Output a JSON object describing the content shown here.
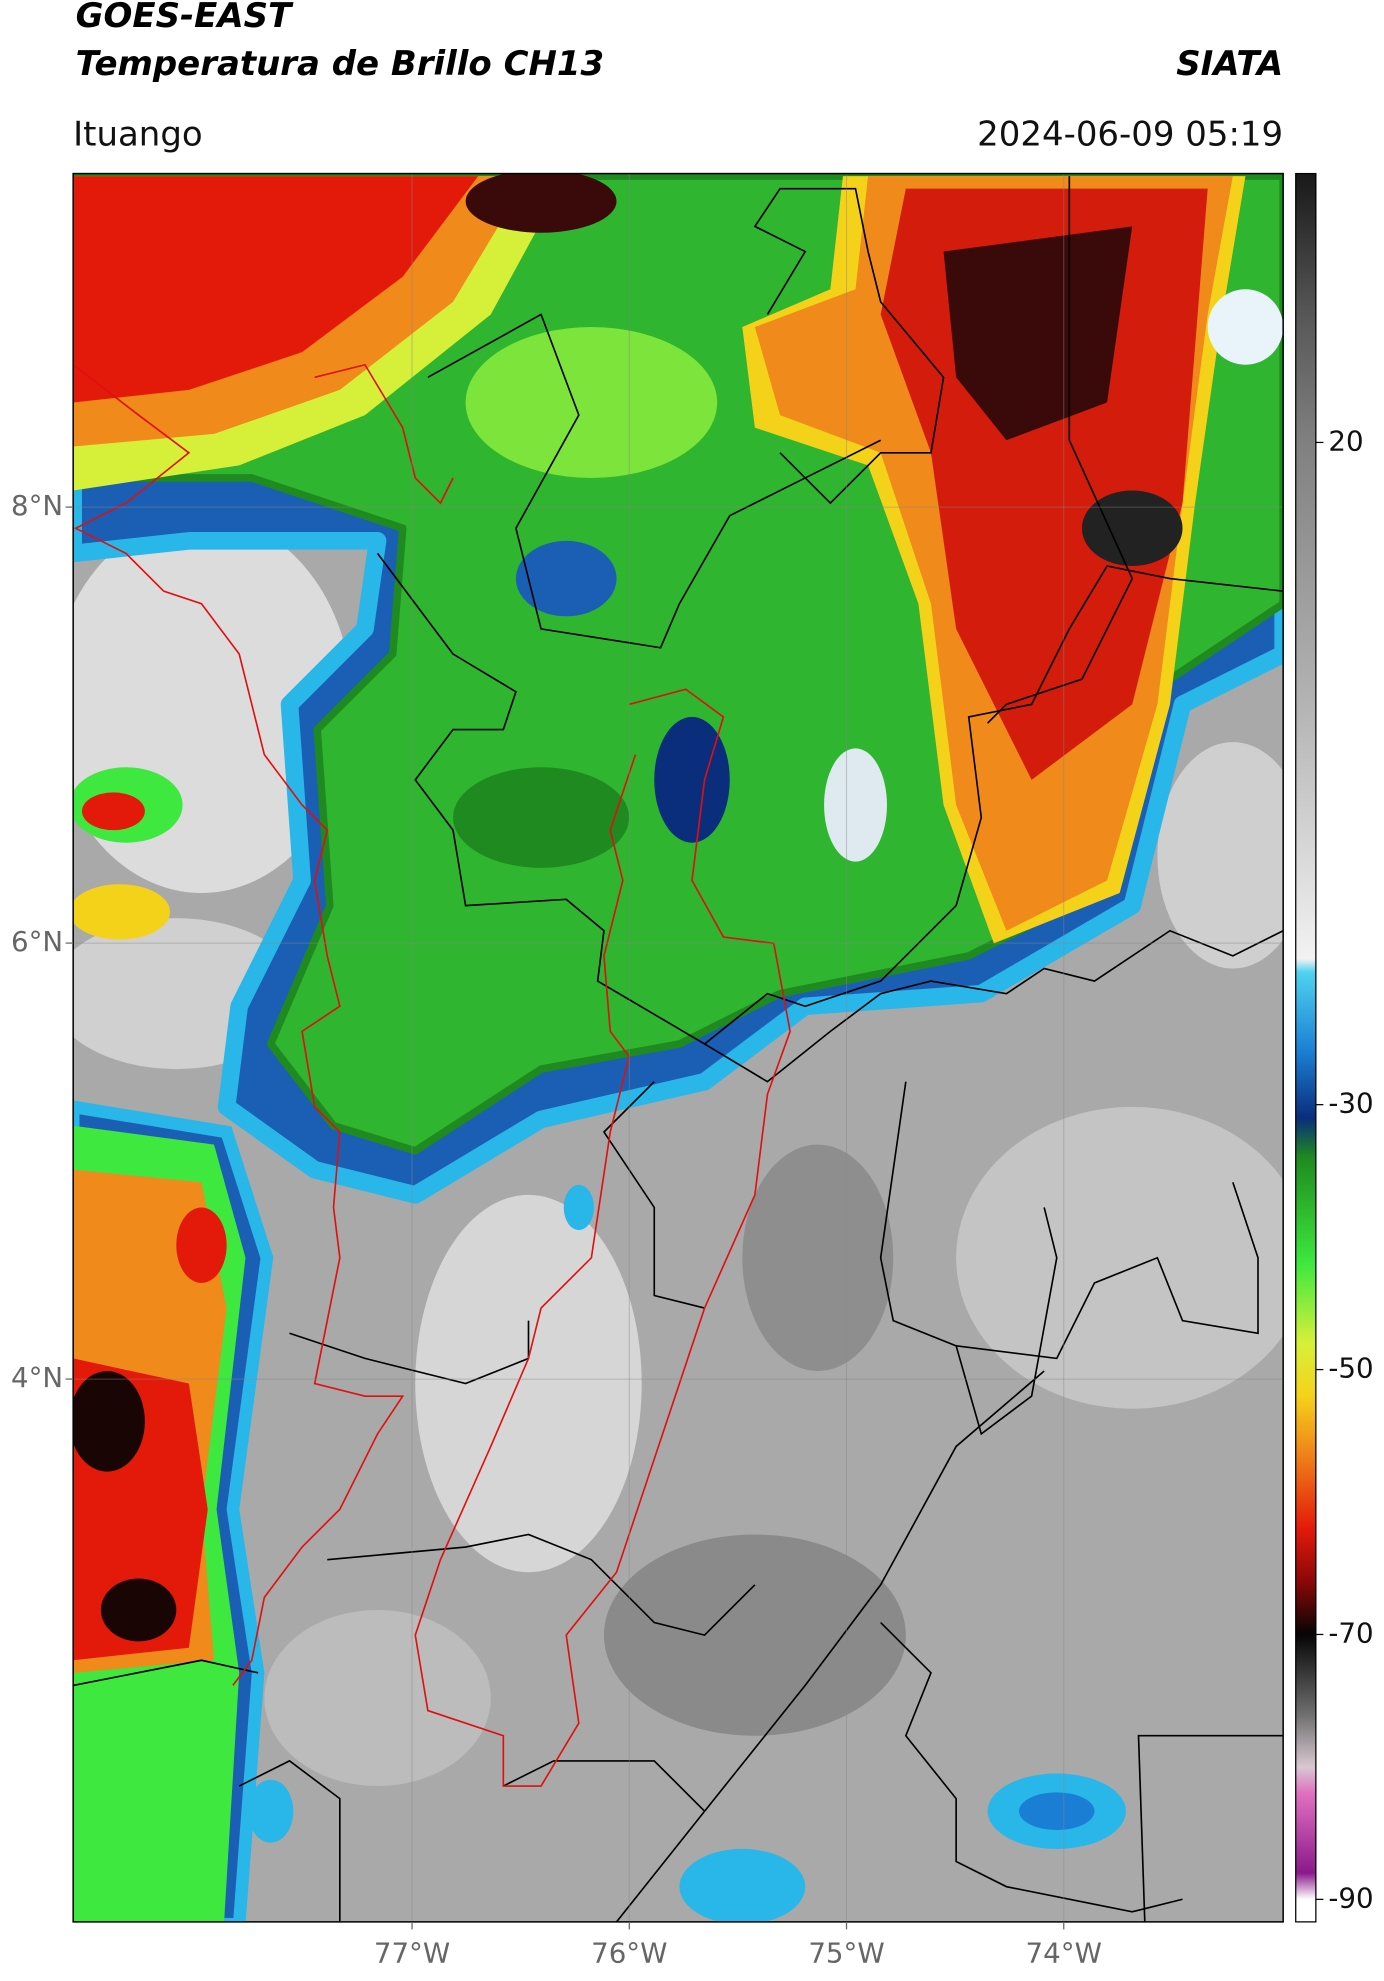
{
  "header": {
    "title": "GOES-EAST",
    "subtitle": "Temperatura de Brillo CH13",
    "source": "SIATA",
    "location": "Ituango",
    "datetime": "2024-06-09 05:19"
  },
  "map": {
    "xlim": [
      -78.56,
      -72.99
    ],
    "ylim": [
      1.51,
      9.53
    ],
    "xticks": [
      {
        "value": -77,
        "label": "77°W"
      },
      {
        "value": -76,
        "label": "76°W"
      },
      {
        "value": -75,
        "label": "75°W"
      },
      {
        "value": -74,
        "label": "74°W"
      }
    ],
    "yticks": [
      {
        "value": 8,
        "label": "8°N"
      },
      {
        "value": 6,
        "label": "6°N"
      },
      {
        "value": 4,
        "label": "4°N"
      }
    ],
    "grid": true
  },
  "colorbar": {
    "clim": [
      -91.7,
      40.3
    ],
    "ticks": [
      20,
      -30,
      -50,
      -70,
      -90
    ],
    "stops": [
      [
        40,
        "#1a1a1a"
      ],
      [
        30,
        "#555555"
      ],
      [
        20,
        "#808080"
      ],
      [
        0,
        "#b4b4b4"
      ],
      [
        -19,
        "#f2f2f2"
      ],
      [
        -20,
        "#4fd2f0"
      ],
      [
        -26,
        "#1a7fd4"
      ],
      [
        -31,
        "#0a2d7c"
      ],
      [
        -34,
        "#1f8a1f"
      ],
      [
        -42,
        "#3ee83e"
      ],
      [
        -48,
        "#d6f03a"
      ],
      [
        -52,
        "#f5d21a"
      ],
      [
        -56,
        "#f08a1a"
      ],
      [
        -62,
        "#e31a0a"
      ],
      [
        -66,
        "#8a0808"
      ],
      [
        -70,
        "#050505"
      ],
      [
        -76,
        "#6e6e6e"
      ],
      [
        -80,
        "#d8c8d0"
      ],
      [
        -82,
        "#e070c0"
      ],
      [
        -88,
        "#8a1a8a"
      ],
      [
        -90,
        "#ffffff"
      ]
    ]
  }
}
